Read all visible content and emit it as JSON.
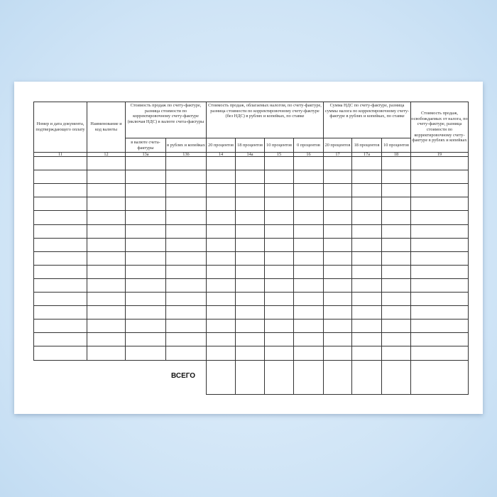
{
  "form": {
    "headers": {
      "col11": "Номер и дата документа, подтверждающего оплату",
      "col12": "Наименование и код валюты",
      "group13": "Стоимость продаж по счету-фактуре, разница стоимости по корректировочному счету-фактуре (включая НДС) в валюте счета-фактуры",
      "col13a": "в валюте счета-фактуры",
      "col13b": "в рублях и копейках",
      "group14": "Стоимость продаж, облагаемых налогом, по счету-фактуре, разница стоимости по корректировочному счету-фактуре (без НДС) в рублях и копейках, по ставке",
      "col14": "20 процентов",
      "col14a": "18 процентов",
      "col15": "10 процентов",
      "col16": "0 процентов",
      "group17": "Сумма НДС по счету-фактуре, разница суммы налога по корректировочному счету-фактуре в рублях и копейках, по ставке",
      "col17": "20 процентов",
      "col17a": "18 процентов",
      "col18": "10 процентов",
      "col19": "Стоимость продаж, освобождаемых от налога, по счету-фактуре, разница стоимости по корректировочному счету-фактуре в рублях и копейках"
    },
    "column_numbers": [
      "11",
      "12",
      "13а",
      "13б",
      "14",
      "14а",
      "15",
      "16",
      "17",
      "17а",
      "18",
      "19"
    ],
    "total_label": "ВСЕГО"
  }
}
